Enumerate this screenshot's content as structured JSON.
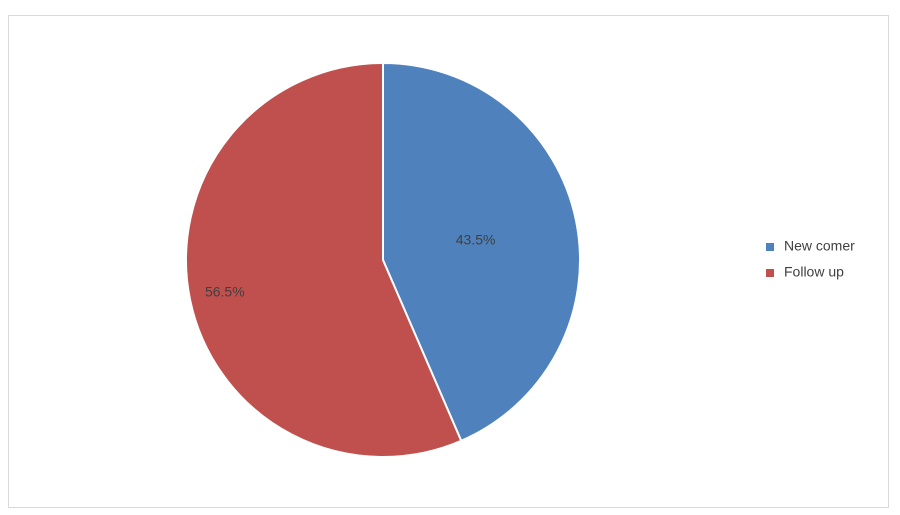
{
  "chart_data": {
    "type": "pie",
    "categories": [
      "New comer",
      "Follow up"
    ],
    "values": [
      43.5,
      56.5
    ],
    "value_labels": [
      "43.5%",
      "56.5%"
    ],
    "colors": [
      "#4f81bd",
      "#c0504d"
    ],
    "legend": "right"
  }
}
